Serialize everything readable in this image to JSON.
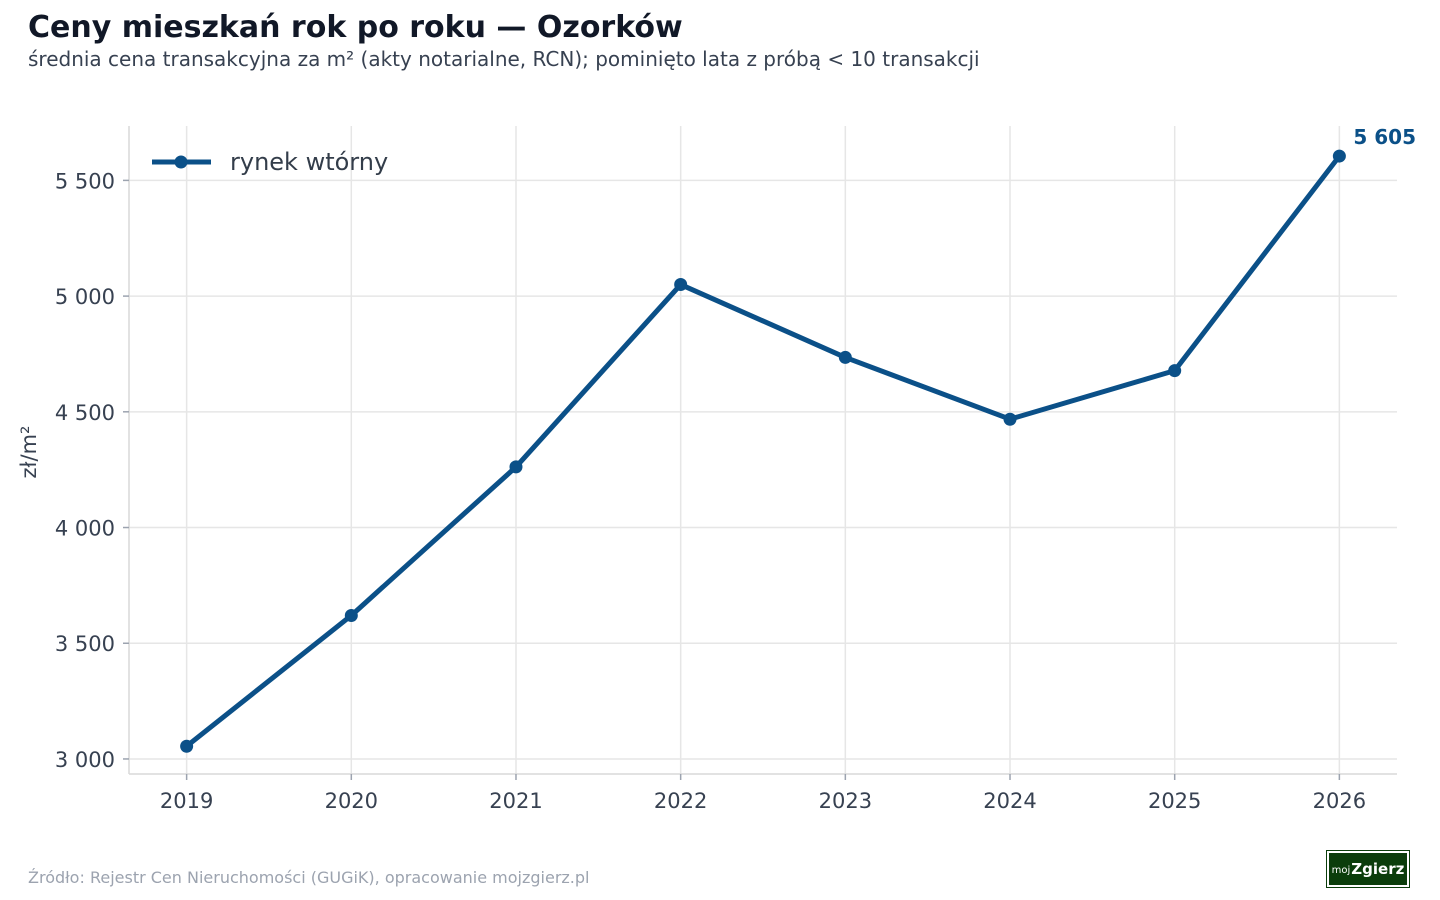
{
  "header": {
    "title": "Ceny mieszkań rok po roku — Ozorków",
    "subtitle": "średnia cena transakcyjna za m² (akty notarialne, RCN); pominięto lata z próbą < 10 transakcji"
  },
  "footer": {
    "source": "Źródło: Rejestr Cen Nieruchomości (GUGiK), opracowanie mojzgierz.pl",
    "logo_prefix": "moj",
    "logo_main": "Zgierz"
  },
  "chart_data": {
    "type": "line",
    "title": "Ceny mieszkań rok po roku — Ozorków",
    "subtitle": "średnia cena transakcyjna za m² (akty notarialne, RCN); pominięto lata z próbą < 10 transakcji",
    "xlabel": "",
    "ylabel": "zł/m²",
    "x": [
      2019,
      2020,
      2021,
      2022,
      2023,
      2024,
      2025,
      2026
    ],
    "x_tick_labels": [
      "2019",
      "2020",
      "2021",
      "2022",
      "2023",
      "2024",
      "2025",
      "2026"
    ],
    "y_ticks": [
      3000,
      3500,
      4000,
      4500,
      5000,
      5500
    ],
    "y_tick_labels": [
      "3 000",
      "3 500",
      "4 000",
      "4 500",
      "5 000",
      "5 500"
    ],
    "ylim": [
      2935,
      5735
    ],
    "xlim": [
      2018.65,
      2026.35
    ],
    "grid": true,
    "legend_position": "top-left",
    "series": [
      {
        "name": "rynek wtórny",
        "color": "#0b5088",
        "values": [
          3055,
          3620,
          4262,
          5050,
          4735,
          4468,
          4678,
          5605
        ]
      }
    ],
    "annotations": [
      {
        "x": 2026,
        "text": "5 605"
      }
    ]
  }
}
